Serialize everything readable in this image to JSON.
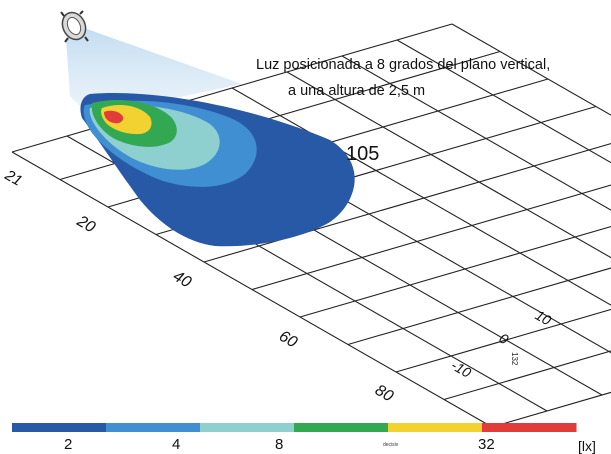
{
  "caption": {
    "line1": "Luz posicionada a 8 grados del plano vertical,",
    "line2": "a una altura de 2,5 m"
  },
  "peak_label": "105",
  "grid_labels": {
    "x_ticks": [
      "20",
      "40",
      "60",
      "80"
    ],
    "y_ticks": [
      "10",
      "0",
      "-10"
    ],
    "partial_tick": "21",
    "unit_small": "132"
  },
  "colorbar": {
    "colors": [
      "#2859a6",
      "#3f8fd2",
      "#8ecfcf",
      "#33a853",
      "#f2d230",
      "#e23c3a"
    ],
    "tick_labels": [
      "2",
      "4",
      "8",
      "32"
    ],
    "small_label": "decisiv",
    "unit": "[lx]"
  },
  "legend_levels": [
    {
      "level": "<2",
      "color": "#2859a6"
    },
    {
      "level": "2-4",
      "color": "#3f8fd2"
    },
    {
      "level": "4-8",
      "color": "#8ecfcf"
    },
    {
      "level": "8-16",
      "color": "#33a853"
    },
    {
      "level": "16-32",
      "color": "#f2d230"
    },
    {
      "level": ">32",
      "color": "#e23c3a"
    }
  ],
  "icons": {
    "lamp": "floodlight-icon"
  }
}
